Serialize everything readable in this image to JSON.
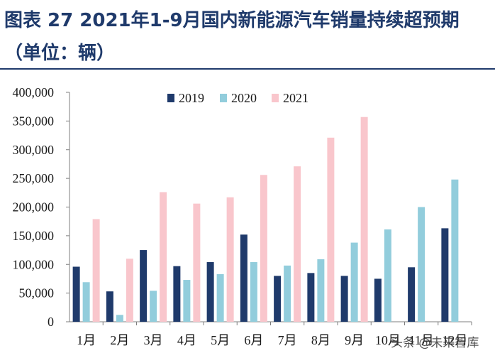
{
  "header": {
    "title_line1": "图表 27    2021年1-9月国内新能源汽车销量持续超预期",
    "title_line2": "（单位：辆）"
  },
  "watermark": "头条 @未来智库",
  "colors": {
    "title": "#1f3a6b",
    "s2019": "#1f3a6b",
    "s2020": "#92cddc",
    "s2021": "#f9c6cc",
    "axis": "#7f7f7f"
  },
  "chart_data": {
    "type": "bar",
    "categories": [
      "1月",
      "2月",
      "3月",
      "4月",
      "5月",
      "6月",
      "7月",
      "8月",
      "9月",
      "10月",
      "11月",
      "12月"
    ],
    "series": [
      {
        "name": "2019",
        "values": [
          96000,
          53000,
          125000,
          97000,
          104000,
          152000,
          80000,
          85000,
          80000,
          75000,
          95000,
          163000
        ]
      },
      {
        "name": "2020",
        "values": [
          69000,
          12000,
          54000,
          73000,
          83000,
          104000,
          98000,
          109000,
          138000,
          161000,
          200000,
          248000
        ]
      },
      {
        "name": "2021",
        "values": [
          179000,
          110000,
          226000,
          206000,
          217000,
          256000,
          271000,
          321000,
          357000,
          null,
          null,
          null
        ]
      }
    ],
    "ylim": [
      0,
      400000
    ],
    "yticks": [
      "0",
      "50,000",
      "100,000",
      "150,000",
      "200,000",
      "250,000",
      "300,000",
      "350,000",
      "400,000"
    ],
    "legend_position": "top-center",
    "grid": false
  }
}
